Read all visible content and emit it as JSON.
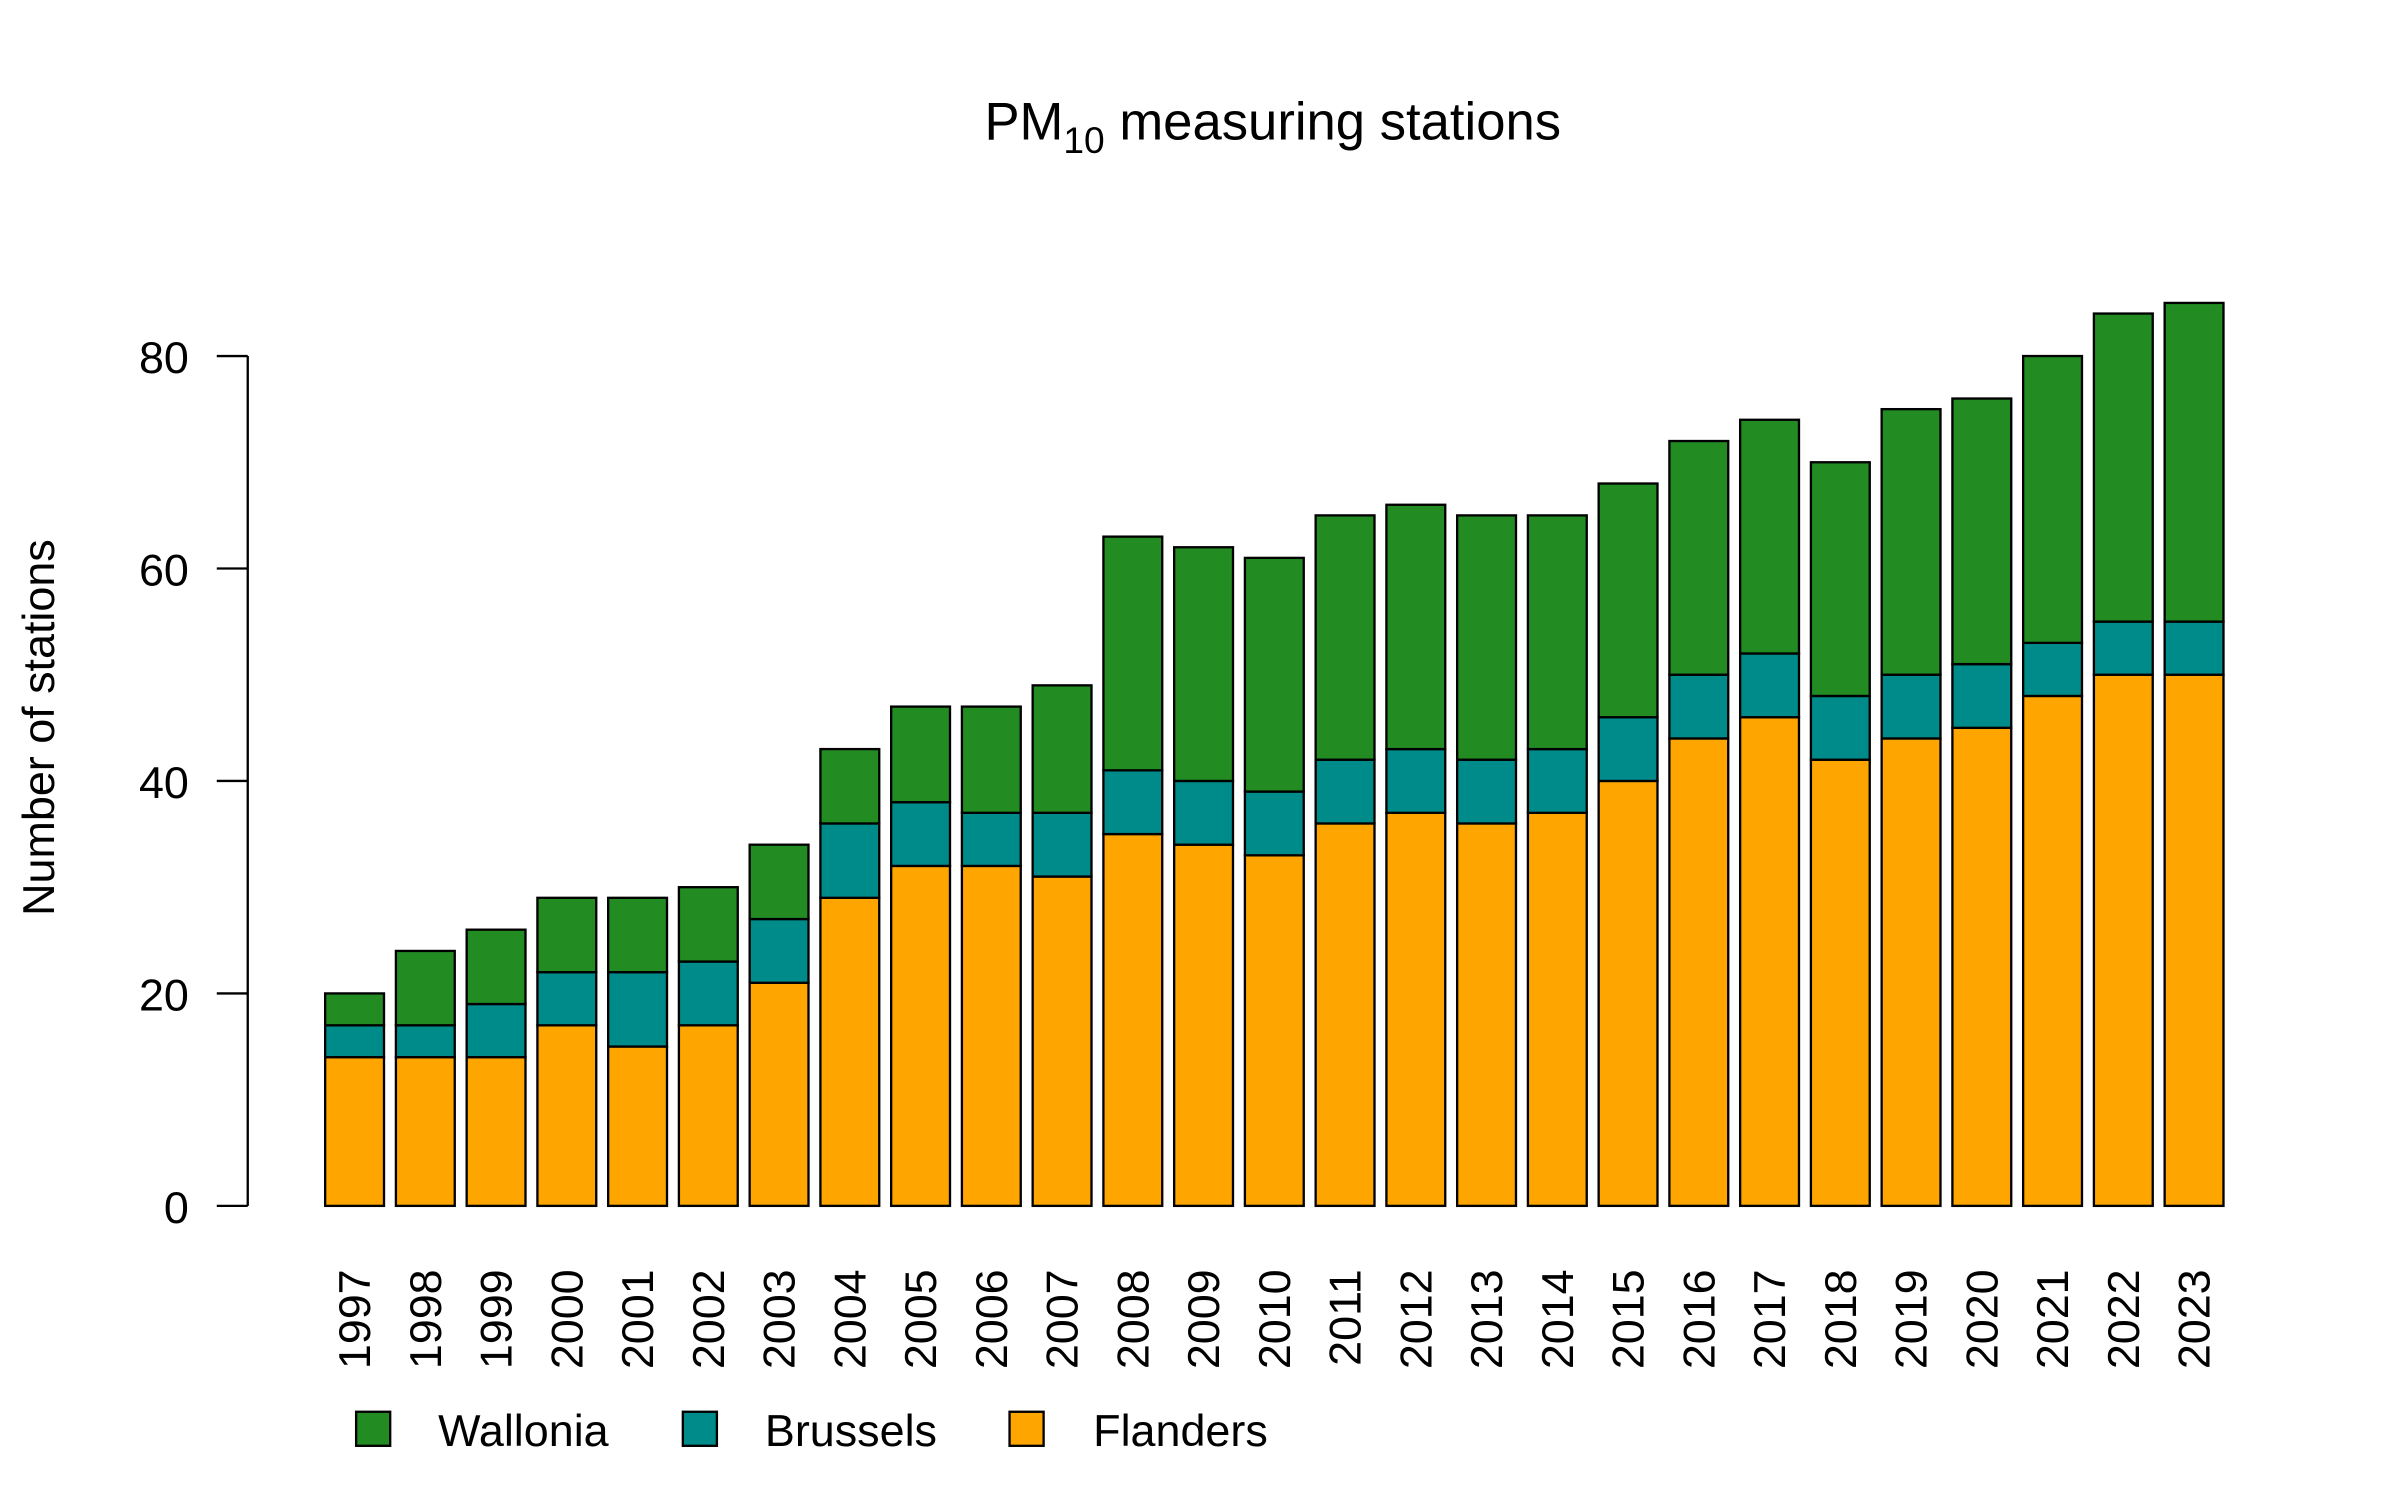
{
  "chart_data": {
    "type": "bar",
    "stacked": true,
    "title": "PM",
    "title_subscript": "10",
    "title_rest": " measuring stations",
    "xlabel": "",
    "ylabel": "Number of stations",
    "ylim": [
      0,
      88
    ],
    "yticks": [
      "0",
      "20",
      "40",
      "60",
      "80"
    ],
    "grid": false,
    "legend_position": "bottom-left",
    "categories": [
      "1997",
      "1998",
      "1999",
      "2000",
      "2001",
      "2002",
      "2003",
      "2004",
      "2005",
      "2006",
      "2007",
      "2008",
      "2009",
      "2010",
      "2011",
      "2012",
      "2013",
      "2014",
      "2015",
      "2016",
      "2017",
      "2018",
      "2019",
      "2020",
      "2021",
      "2022",
      "2023"
    ],
    "series": [
      {
        "name": "Flanders",
        "color": "#FFA500",
        "values": [
          14,
          14,
          14,
          17,
          15,
          17,
          21,
          29,
          32,
          32,
          31,
          35,
          34,
          33,
          36,
          37,
          36,
          37,
          40,
          44,
          46,
          42,
          44,
          45,
          48,
          50,
          50
        ]
      },
      {
        "name": "Brussels",
        "color": "#008B8B",
        "values": [
          3,
          3,
          5,
          5,
          7,
          6,
          6,
          7,
          6,
          5,
          6,
          6,
          6,
          6,
          6,
          6,
          6,
          6,
          6,
          6,
          6,
          6,
          6,
          6,
          5,
          5,
          5
        ]
      },
      {
        "name": "Wallonia",
        "color": "#228B22",
        "values": [
          3,
          7,
          7,
          7,
          7,
          7,
          7,
          7,
          9,
          10,
          12,
          22,
          22,
          22,
          23,
          23,
          23,
          22,
          22,
          22,
          22,
          22,
          25,
          25,
          27,
          29,
          30
        ]
      }
    ],
    "legend": [
      "Wallonia",
      "Brussels",
      "Flanders"
    ]
  }
}
